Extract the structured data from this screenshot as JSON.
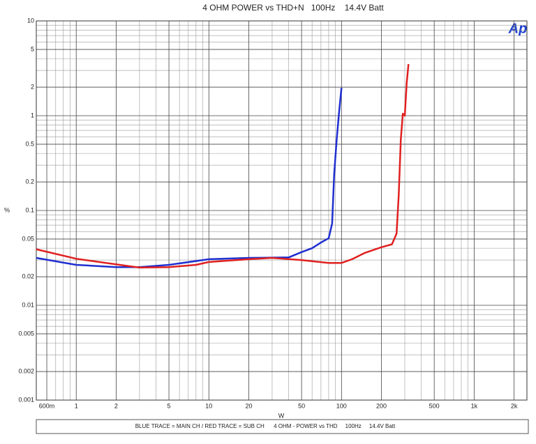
{
  "chart_data": {
    "type": "line",
    "title": "4 OHM POWER vs THD+N   100Hz    14.4V Batt",
    "logo": "Ap",
    "x_label": "W",
    "y_label": "%",
    "footer": "BLUE TRACE = MAIN CH / RED TRACE = SUB CH      4 OHM - POWER vs THD     100Hz     14.4V Batt",
    "xscale": "log",
    "yscale": "log",
    "grid": true,
    "xlim": [
      0.5,
      2500
    ],
    "ylim": [
      0.001,
      10
    ],
    "xticks": [
      {
        "value": 0.6,
        "label": "600m"
      },
      1,
      2,
      5,
      10,
      20,
      50,
      100,
      200,
      500,
      {
        "value": 1000,
        "label": "1k"
      },
      {
        "value": 2000,
        "label": "2k"
      }
    ],
    "xminor": [
      0.7,
      0.8,
      0.9,
      3,
      4,
      6,
      7,
      8,
      9,
      30,
      40,
      60,
      70,
      80,
      90,
      300,
      400,
      600,
      700,
      800,
      900
    ],
    "yticks": [
      10,
      5,
      2,
      1,
      0.5,
      0.2,
      0.1,
      0.05,
      0.02,
      0.01,
      0.005,
      0.002,
      0.001
    ],
    "yminor": [
      0.003,
      0.004,
      0.006,
      0.007,
      0.008,
      0.009,
      0.03,
      0.04,
      0.06,
      0.07,
      0.08,
      0.09,
      0.3,
      0.4,
      0.6,
      0.7,
      0.8,
      0.9,
      3,
      4,
      6,
      7,
      8,
      9
    ],
    "series": [
      {
        "name": "MAIN CH",
        "color": "#1f2fd0",
        "x": [
          0.5,
          1,
          2,
          3,
          5,
          10,
          20,
          40,
          50,
          60,
          70,
          80,
          85,
          88,
          92,
          96,
          100
        ],
        "values": [
          0.0316,
          0.0267,
          0.0253,
          0.0253,
          0.0267,
          0.0306,
          0.0316,
          0.032,
          0.0364,
          0.04,
          0.046,
          0.051,
          0.073,
          0.24,
          0.56,
          1.1,
          1.97
        ]
      },
      {
        "name": "SUB CH",
        "color": "#e02020",
        "x": [
          0.5,
          1,
          2,
          3,
          5,
          8,
          10,
          20,
          30,
          50,
          80,
          100,
          120,
          150,
          200,
          240,
          260,
          270,
          280,
          290,
          300,
          310,
          320
        ],
        "values": [
          0.039,
          0.031,
          0.027,
          0.025,
          0.0253,
          0.0267,
          0.0286,
          0.0306,
          0.0316,
          0.03,
          0.028,
          0.028,
          0.0306,
          0.0357,
          0.041,
          0.044,
          0.057,
          0.145,
          0.56,
          1.05,
          1.0,
          2.2,
          3.5
        ]
      }
    ]
  }
}
